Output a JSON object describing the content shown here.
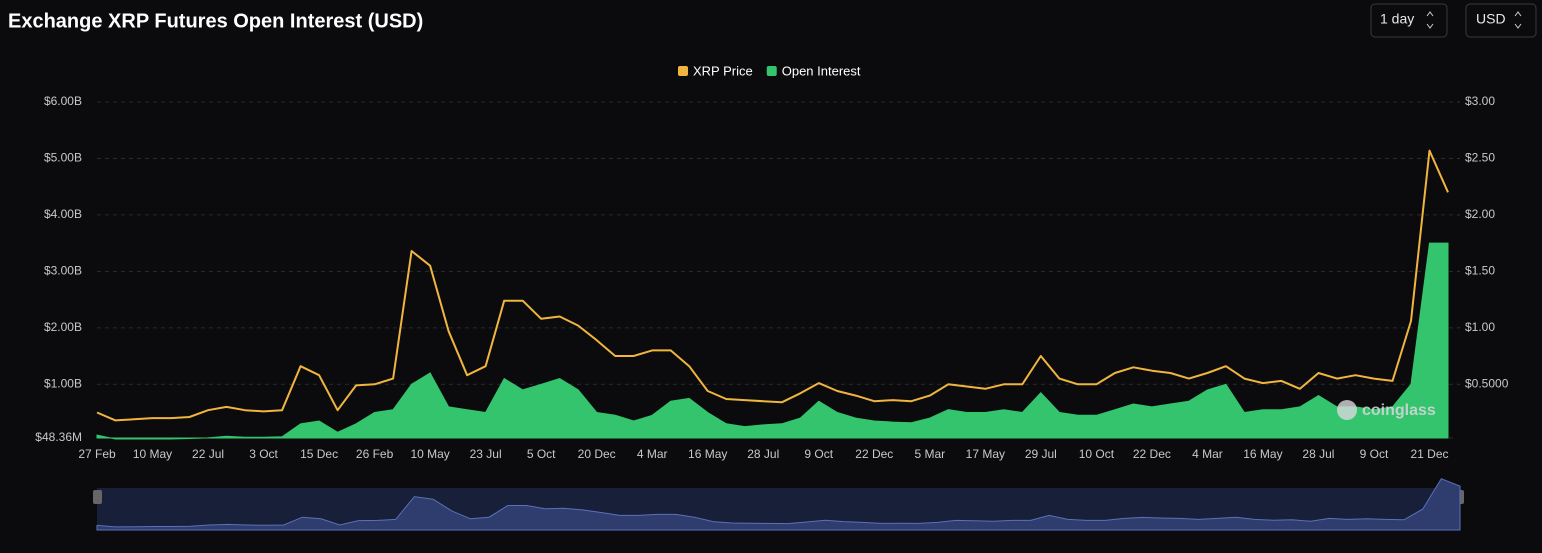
{
  "controls": [
    "1 day",
    "USD"
  ],
  "watermark": "coinglass",
  "chart_data": {
    "type": "line",
    "title": "Exchange XRP Futures Open Interest (USD)",
    "categories": [
      "27 Feb",
      null,
      null,
      "10 May",
      null,
      null,
      "22 Jul",
      null,
      null,
      "3 Oct",
      null,
      null,
      "15 Dec",
      null,
      null,
      "26 Feb",
      null,
      null,
      "10 May",
      null,
      null,
      "23 Jul",
      null,
      null,
      "5 Oct",
      null,
      null,
      "20 Dec",
      null,
      null,
      "4 Mar",
      null,
      null,
      "16 May",
      null,
      null,
      "28 Jul",
      null,
      null,
      "9 Oct",
      null,
      null,
      "22 Dec",
      null,
      null,
      "5 Mar",
      null,
      null,
      "17 May",
      null,
      null,
      "29 Jul",
      null,
      null,
      "10 Oct",
      null,
      null,
      "22 Dec",
      null,
      null,
      "4 Mar",
      null,
      null,
      "16 May",
      null,
      null,
      "28 Jul",
      null,
      null,
      "9 Oct",
      null,
      null,
      "21 Dec",
      null
    ],
    "series": [
      {
        "name": "XRP Price",
        "color": "#f0b53f",
        "axis": "y2",
        "values": [
          0.25,
          0.18,
          0.19,
          0.2,
          0.2,
          0.21,
          0.27,
          0.3,
          0.27,
          0.26,
          0.27,
          0.66,
          0.58,
          0.27,
          0.49,
          0.5,
          0.55,
          1.68,
          1.55,
          0.97,
          0.58,
          0.66,
          1.24,
          1.24,
          1.08,
          1.1,
          1.02,
          0.89,
          0.75,
          0.75,
          0.8,
          0.8,
          0.66,
          0.44,
          0.37,
          0.36,
          0.35,
          0.34,
          0.42,
          0.51,
          0.44,
          0.4,
          0.35,
          0.36,
          0.35,
          0.4,
          0.5,
          0.48,
          0.46,
          0.5,
          0.5,
          0.75,
          0.55,
          0.5,
          0.5,
          0.6,
          0.65,
          0.62,
          0.6,
          0.55,
          0.6,
          0.66,
          0.55,
          0.51,
          0.53,
          0.46,
          0.6,
          0.55,
          0.58,
          0.55,
          0.53,
          1.06,
          2.57,
          2.2
        ]
      },
      {
        "name": "Open Interest",
        "color": "#34c46e",
        "values": [
          100000000,
          30000000,
          30000000,
          30000000,
          30000000,
          40000000,
          50000000,
          80000000,
          60000000,
          60000000,
          70000000,
          300000000,
          350000000,
          150000000,
          300000000,
          500000000,
          550000000,
          1000000000,
          1200000000,
          600000000,
          550000000,
          500000000,
          1100000000,
          900000000,
          1000000000,
          1100000000,
          900000000,
          500000000,
          450000000,
          350000000,
          450000000,
          700000000,
          750000000,
          500000000,
          300000000,
          250000000,
          280000000,
          300000000,
          400000000,
          700000000,
          500000000,
          400000000,
          350000000,
          330000000,
          320000000,
          400000000,
          550000000,
          500000000,
          500000000,
          550000000,
          500000000,
          850000000,
          500000000,
          450000000,
          450000000,
          550000000,
          650000000,
          600000000,
          650000000,
          700000000,
          900000000,
          1000000000,
          500000000,
          550000000,
          550000000,
          600000000,
          800000000,
          600000000,
          600000000,
          550000000,
          600000000,
          1000000000,
          3500000000,
          3500000000
        ]
      }
    ],
    "ylim": [
      48360000,
      6000000000
    ],
    "yticks": [
      {
        "value": 48360000,
        "label": "$48.36M"
      },
      {
        "value": 1000000000,
        "label": "$1.00B"
      },
      {
        "value": 2000000000,
        "label": "$2.00B"
      },
      {
        "value": 3000000000,
        "label": "$3.00B"
      },
      {
        "value": 4000000000,
        "label": "$4.00B"
      },
      {
        "value": 5000000000,
        "label": "$5.00B"
      },
      {
        "value": 6000000000,
        "label": "$6.00B"
      }
    ],
    "y2lim": [
      0.02418,
      3
    ],
    "y2ticks": [
      {
        "value": 0.5,
        "label": "$0.5000"
      },
      {
        "value": 1,
        "label": "$1.00"
      },
      {
        "value": 1.5,
        "label": "$1.50"
      },
      {
        "value": 2,
        "label": "$2.00"
      },
      {
        "value": 2.5,
        "label": "$2.50"
      },
      {
        "value": 3,
        "label": "$3.00"
      }
    ],
    "grid": true,
    "legend": "top"
  }
}
